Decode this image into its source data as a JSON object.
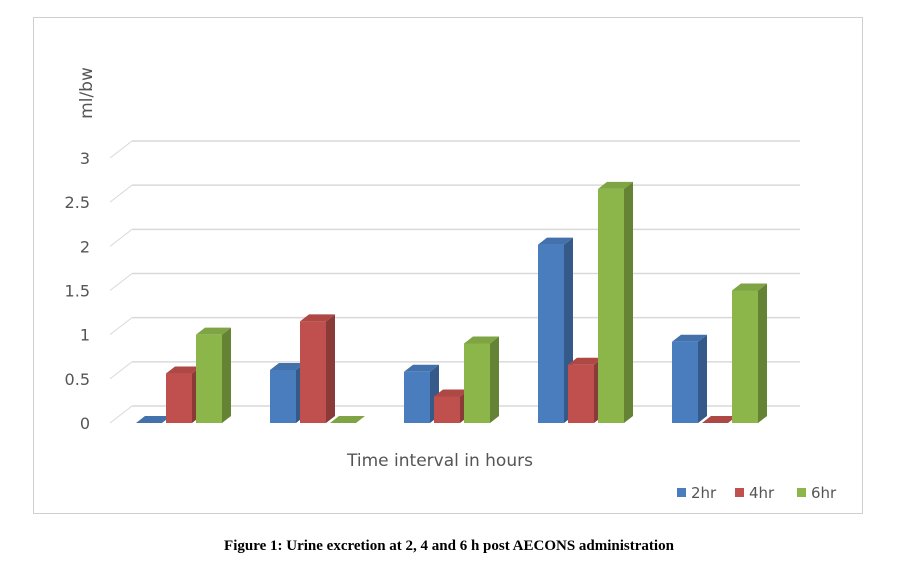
{
  "caption": "Figure 1: Urine excretion at 2, 4 and 6 h post AECONS administration",
  "chart_data": {
    "type": "bar",
    "ylabel": "ml/bw",
    "xlabel": "Time interval in hours",
    "ylim": [
      0,
      3
    ],
    "yticks": [
      "0",
      "0.5",
      "1",
      "1.5",
      "2",
      "2.5",
      "3"
    ],
    "grid": true,
    "legend_position": "bottom-right",
    "groups": 5,
    "series": [
      {
        "name": "2hr",
        "color": "#4a7dbe",
        "values": [
          0,
          0.6,
          0.58,
          2.02,
          0.92
        ]
      },
      {
        "name": "4hr",
        "color": "#c0504d",
        "values": [
          0.56,
          1.15,
          0.3,
          0.66,
          0
        ]
      },
      {
        "name": "6hr",
        "color": "#8cb64a",
        "values": [
          1.0,
          0,
          0.9,
          2.65,
          1.5
        ]
      }
    ]
  }
}
